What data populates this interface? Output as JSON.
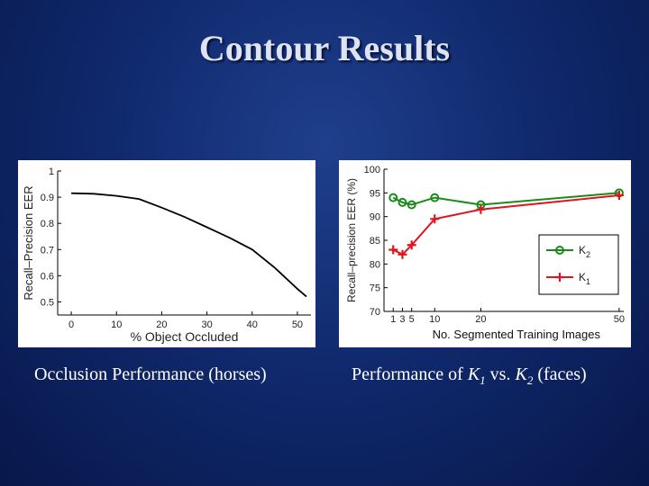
{
  "slide": {
    "title": "Contour Results"
  },
  "captions": {
    "left": "Occlusion Performance (horses)",
    "right_prefix": "Performance of ",
    "right_k1_base": "K",
    "right_k1_sub": "1",
    "right_vs": " vs. ",
    "right_k2_base": "K",
    "right_k2_sub": "2",
    "right_suffix": " (faces)"
  },
  "chart_data": [
    {
      "type": "line",
      "title": "",
      "xlabel": "% Object Occluded",
      "ylabel": "Recall–Precision EER",
      "xlim": [
        -3,
        53
      ],
      "ylim": [
        0.45,
        1.0
      ],
      "xticks": [
        0,
        10,
        20,
        30,
        40,
        50
      ],
      "yticks": [
        0.5,
        0.6,
        0.7,
        0.8,
        0.9,
        1
      ],
      "ytick_labels": [
        "0.5",
        "0.6",
        "0.7",
        "0.8",
        "0.9",
        "1"
      ],
      "grid": false,
      "series": [
        {
          "color": "#000000",
          "x": [
            0,
            5,
            10,
            15,
            20,
            25,
            30,
            35,
            40,
            45,
            50,
            52
          ],
          "y": [
            0.915,
            0.913,
            0.905,
            0.893,
            0.86,
            0.825,
            0.785,
            0.745,
            0.7,
            0.63,
            0.55,
            0.52
          ]
        }
      ]
    },
    {
      "type": "line",
      "title": "",
      "xlabel": "No. Segmented Training Images",
      "ylabel": "Recall–precision EER (%)",
      "xlim": [
        -1,
        51
      ],
      "ylim": [
        70,
        100
      ],
      "xticks": [
        1,
        3,
        5,
        10,
        20,
        50
      ],
      "yticks": [
        70,
        75,
        80,
        85,
        90,
        95,
        100
      ],
      "grid": false,
      "legend_position": "bottom-right",
      "series": [
        {
          "name_base": "K",
          "name_sub": "2",
          "color": "#1a8a1a",
          "marker": "circle",
          "x": [
            1,
            3,
            5,
            10,
            20,
            50
          ],
          "y": [
            94,
            93,
            92.5,
            94,
            92.5,
            95
          ]
        },
        {
          "name_base": "K",
          "name_sub": "1",
          "color": "#e0141e",
          "marker": "plus",
          "x": [
            1,
            3,
            5,
            10,
            20,
            50
          ],
          "y": [
            83,
            82,
            84,
            89.5,
            91.5,
            94.5
          ]
        }
      ]
    }
  ]
}
